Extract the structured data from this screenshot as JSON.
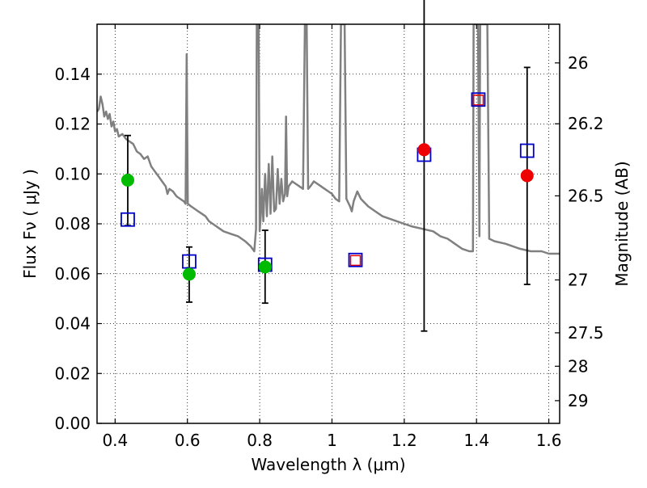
{
  "chart_data": {
    "type": "scatter",
    "xlabel": "Wavelength  λ (μm)",
    "ylabel": "Flux  Fν  ( μJy )",
    "y2label": "Magnitude (AB)",
    "xlim": [
      0.35,
      1.63
    ],
    "ylim": [
      0.0,
      0.16
    ],
    "grid": true,
    "x_ticks": [
      0.4,
      0.6,
      0.8,
      1.0,
      1.2,
      1.4,
      1.6
    ],
    "x_tick_labels": [
      "0.4",
      "0.6",
      "0.8",
      "1",
      "1.2",
      "1.4",
      "1.6"
    ],
    "y_ticks": [
      0.0,
      0.02,
      0.04,
      0.06,
      0.08,
      0.1,
      0.12,
      0.14
    ],
    "y_tick_labels": [
      "0.00",
      "0.02",
      "0.04",
      "0.06",
      "0.08",
      "0.10",
      "0.12",
      "0.14"
    ],
    "y2_ticks": [
      {
        "flux": 0.1445,
        "label": "26"
      },
      {
        "flux": 0.1201,
        "label": "26.2"
      },
      {
        "flux": 0.0912,
        "label": "26.5"
      },
      {
        "flux": 0.0575,
        "label": "27"
      },
      {
        "flux": 0.0363,
        "label": "27.5"
      },
      {
        "flux": 0.0229,
        "label": "28"
      },
      {
        "flux": 0.0091,
        "label": "29"
      }
    ],
    "sed_model": {
      "color": "#808080",
      "points": [
        [
          0.35,
          0.125
        ],
        [
          0.355,
          0.126
        ],
        [
          0.36,
          0.131
        ],
        [
          0.365,
          0.128
        ],
        [
          0.37,
          0.123
        ],
        [
          0.375,
          0.125
        ],
        [
          0.38,
          0.122
        ],
        [
          0.385,
          0.124
        ],
        [
          0.39,
          0.119
        ],
        [
          0.395,
          0.121
        ],
        [
          0.4,
          0.117
        ],
        [
          0.405,
          0.118
        ],
        [
          0.41,
          0.115
        ],
        [
          0.42,
          0.116
        ],
        [
          0.43,
          0.114
        ],
        [
          0.44,
          0.113
        ],
        [
          0.45,
          0.112
        ],
        [
          0.46,
          0.109
        ],
        [
          0.47,
          0.108
        ],
        [
          0.48,
          0.106
        ],
        [
          0.49,
          0.107
        ],
        [
          0.5,
          0.103
        ],
        [
          0.51,
          0.101
        ],
        [
          0.52,
          0.099
        ],
        [
          0.53,
          0.097
        ],
        [
          0.54,
          0.095
        ],
        [
          0.545,
          0.092
        ],
        [
          0.55,
          0.094
        ],
        [
          0.56,
          0.093
        ],
        [
          0.57,
          0.091
        ],
        [
          0.58,
          0.09
        ],
        [
          0.59,
          0.089
        ],
        [
          0.595,
          0.088
        ],
        [
          0.598,
          0.148
        ],
        [
          0.601,
          0.088
        ],
        [
          0.61,
          0.087
        ],
        [
          0.62,
          0.086
        ],
        [
          0.63,
          0.085
        ],
        [
          0.64,
          0.084
        ],
        [
          0.65,
          0.083
        ],
        [
          0.66,
          0.081
        ],
        [
          0.67,
          0.08
        ],
        [
          0.68,
          0.079
        ],
        [
          0.69,
          0.078
        ],
        [
          0.7,
          0.077
        ],
        [
          0.72,
          0.076
        ],
        [
          0.74,
          0.075
        ],
        [
          0.76,
          0.073
        ],
        [
          0.775,
          0.071
        ],
        [
          0.785,
          0.069
        ],
        [
          0.79,
          0.078
        ],
        [
          0.792,
          0.16
        ],
        [
          0.797,
          0.16
        ],
        [
          0.8,
          0.077
        ],
        [
          0.803,
          0.083
        ],
        [
          0.806,
          0.094
        ],
        [
          0.81,
          0.081
        ],
        [
          0.815,
          0.1
        ],
        [
          0.82,
          0.083
        ],
        [
          0.825,
          0.104
        ],
        [
          0.83,
          0.084
        ],
        [
          0.835,
          0.107
        ],
        [
          0.84,
          0.085
        ],
        [
          0.845,
          0.086
        ],
        [
          0.85,
          0.102
        ],
        [
          0.855,
          0.088
        ],
        [
          0.86,
          0.098
        ],
        [
          0.865,
          0.089
        ],
        [
          0.87,
          0.092
        ],
        [
          0.873,
          0.123
        ],
        [
          0.876,
          0.091
        ],
        [
          0.88,
          0.095
        ],
        [
          0.89,
          0.097
        ],
        [
          0.9,
          0.096
        ],
        [
          0.91,
          0.095
        ],
        [
          0.92,
          0.094
        ],
        [
          0.925,
          0.16
        ],
        [
          0.93,
          0.16
        ],
        [
          0.934,
          0.094
        ],
        [
          0.94,
          0.095
        ],
        [
          0.95,
          0.097
        ],
        [
          0.96,
          0.096
        ],
        [
          0.97,
          0.095
        ],
        [
          0.98,
          0.094
        ],
        [
          0.99,
          0.093
        ],
        [
          1.0,
          0.092
        ],
        [
          1.01,
          0.09
        ],
        [
          1.02,
          0.089
        ],
        [
          1.025,
          0.16
        ],
        [
          1.035,
          0.16
        ],
        [
          1.04,
          0.09
        ],
        [
          1.05,
          0.087
        ],
        [
          1.055,
          0.085
        ],
        [
          1.06,
          0.089
        ],
        [
          1.07,
          0.093
        ],
        [
          1.08,
          0.09
        ],
        [
          1.1,
          0.087
        ],
        [
          1.12,
          0.085
        ],
        [
          1.14,
          0.083
        ],
        [
          1.16,
          0.082
        ],
        [
          1.18,
          0.081
        ],
        [
          1.2,
          0.08
        ],
        [
          1.22,
          0.079
        ],
        [
          1.25,
          0.078
        ],
        [
          1.28,
          0.077
        ],
        [
          1.3,
          0.075
        ],
        [
          1.32,
          0.074
        ],
        [
          1.34,
          0.072
        ],
        [
          1.36,
          0.07
        ],
        [
          1.38,
          0.069
        ],
        [
          1.39,
          0.069
        ],
        [
          1.392,
          0.16
        ],
        [
          1.404,
          0.16
        ],
        [
          1.408,
          0.075
        ],
        [
          1.41,
          0.16
        ],
        [
          1.43,
          0.16
        ],
        [
          1.435,
          0.074
        ],
        [
          1.45,
          0.073
        ],
        [
          1.48,
          0.072
        ],
        [
          1.5,
          0.071
        ],
        [
          1.52,
          0.07
        ],
        [
          1.55,
          0.069
        ],
        [
          1.58,
          0.069
        ],
        [
          1.6,
          0.068
        ],
        [
          1.63,
          0.068
        ]
      ]
    },
    "observed": [
      {
        "x": 0.435,
        "y": 0.0975,
        "color": "#00bb00",
        "err_low": 0.0793,
        "err_high": 0.1154
      },
      {
        "x": 0.605,
        "y": 0.0598,
        "color": "#00bb00",
        "err_low": 0.0486,
        "err_high": 0.0707
      },
      {
        "x": 0.815,
        "y": 0.0627,
        "color": "#00bb00",
        "err_low": 0.0482,
        "err_high": 0.0774
      },
      {
        "x": 1.255,
        "y": 0.1097,
        "color": "#ee0000",
        "err_low": 0.037,
        "err_high": 0.181
      },
      {
        "x": 1.54,
        "y": 0.0993,
        "color": "#ee0000",
        "err_low": 0.0557,
        "err_high": 0.1427
      }
    ],
    "model_photometry": [
      {
        "x": 0.435,
        "y": 0.0817,
        "color": "#0000cc"
      },
      {
        "x": 0.605,
        "y": 0.0649,
        "color": "#0000cc"
      },
      {
        "x": 0.815,
        "y": 0.0636,
        "color": "#0000cc"
      },
      {
        "x": 1.065,
        "y": 0.0655,
        "color": "#0000cc"
      },
      {
        "x": 1.255,
        "y": 0.1077,
        "color": "#0000cc"
      },
      {
        "x": 1.405,
        "y": 0.1298,
        "color": "#0000cc"
      },
      {
        "x": 1.54,
        "y": 0.1093,
        "color": "#0000cc"
      }
    ],
    "upper_limit_markers": [
      {
        "x": 1.065,
        "y": 0.0653,
        "color": "#ee0000"
      },
      {
        "x": 1.405,
        "y": 0.1296,
        "color": "#ee0000"
      }
    ]
  }
}
